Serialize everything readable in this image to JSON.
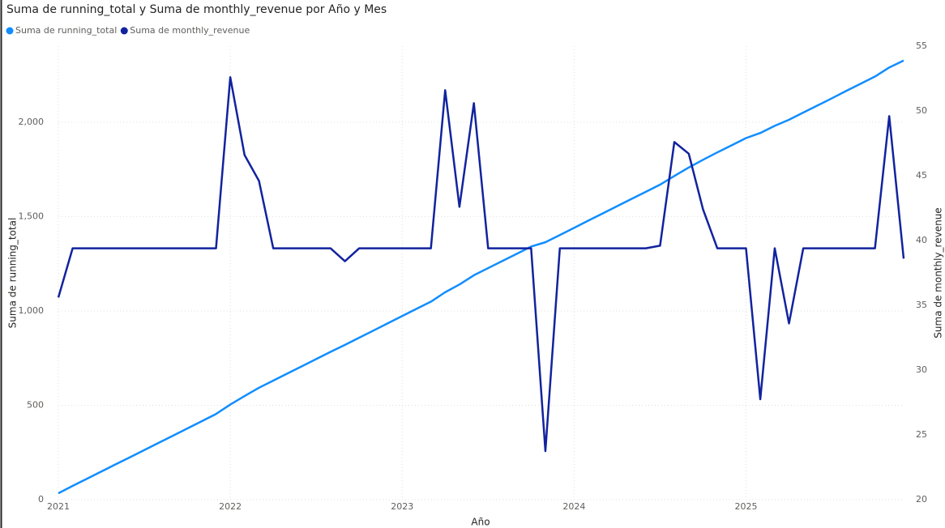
{
  "chart_data": {
    "type": "line",
    "title": "Suma de running_total y Suma de monthly_revenue por Año y Mes",
    "x_label": "Año",
    "y_label": "Suma de running_total",
    "y2_label": "Suma de monthly_revenue",
    "x": [
      2021,
      2021.083,
      2021.167,
      2021.25,
      2021.333,
      2021.417,
      2021.5,
      2021.583,
      2021.667,
      2021.75,
      2021.833,
      2021.917,
      2022,
      2022.083,
      2022.167,
      2022.25,
      2022.333,
      2022.417,
      2022.5,
      2022.583,
      2022.667,
      2022.75,
      2022.833,
      2022.917,
      2023,
      2023.083,
      2023.167,
      2023.25,
      2023.333,
      2023.417,
      2023.5,
      2023.583,
      2023.667,
      2023.75,
      2023.833,
      2023.917,
      2024,
      2024.083,
      2024.167,
      2024.25,
      2024.333,
      2024.417,
      2024.5,
      2024.583,
      2024.667,
      2024.75,
      2024.833,
      2024.917,
      2025,
      2025.083,
      2025.167,
      2025.25,
      2025.333,
      2025.417,
      2025.5,
      2025.583,
      2025.667,
      2025.75,
      2025.833,
      2025.917
    ],
    "xlim": [
      2021,
      2025.917
    ],
    "xticks": [
      2021,
      2022,
      2023,
      2024,
      2025
    ],
    "ylim": [
      0,
      2403
    ],
    "yticks": [
      0,
      500,
      {
        "value": 1000,
        "label": "1,000"
      },
      {
        "value": 1500,
        "label": "1,500"
      },
      {
        "value": 2000,
        "label": "2,000"
      }
    ],
    "y2lim": [
      20,
      55
    ],
    "y2ticks": [
      20,
      25,
      30,
      35,
      40,
      45,
      50,
      55
    ],
    "grid": true,
    "legend": "top-left",
    "series": [
      {
        "name": "Suma de running_total",
        "color": "#118dff",
        "values": [
          34,
          73,
          111,
          149,
          187,
          225,
          263,
          301,
          339,
          377,
          415,
          454,
          504,
          549,
          593,
          631,
          669,
          707,
          745,
          783,
          820,
          858,
          896,
          935,
          973,
          1011,
          1049,
          1099,
          1140,
          1189,
          1227,
          1265,
          1303,
          1341,
          1364,
          1402,
          1440,
          1479,
          1517,
          1555,
          1593,
          1631,
          1669,
          1715,
          1760,
          1801,
          1840,
          1878,
          1916,
          1943,
          1981,
          2013,
          2051,
          2089,
          2127,
          2166,
          2204,
          2242,
          2290,
          2327
        ]
      },
      {
        "name": "Suma de monthly_revenue",
        "color": "#12239e",
        "axis": "y2",
        "values": [
          35.6,
          39.4,
          39.4,
          39.4,
          39.4,
          39.4,
          39.4,
          39.4,
          39.4,
          39.4,
          39.4,
          39.4,
          52.6,
          46.6,
          44.6,
          39.4,
          39.4,
          39.4,
          39.4,
          39.4,
          38.4,
          39.4,
          39.4,
          39.4,
          39.4,
          39.4,
          39.4,
          51.6,
          42.6,
          50.6,
          39.4,
          39.4,
          39.4,
          39.4,
          23.75,
          39.4,
          39.4,
          39.4,
          39.4,
          39.4,
          39.4,
          39.4,
          39.6,
          47.6,
          46.7,
          42.4,
          39.4,
          39.4,
          39.4,
          27.75,
          39.4,
          33.6,
          39.4,
          39.4,
          39.4,
          39.4,
          39.4,
          39.4,
          49.6,
          38.6
        ]
      }
    ]
  }
}
